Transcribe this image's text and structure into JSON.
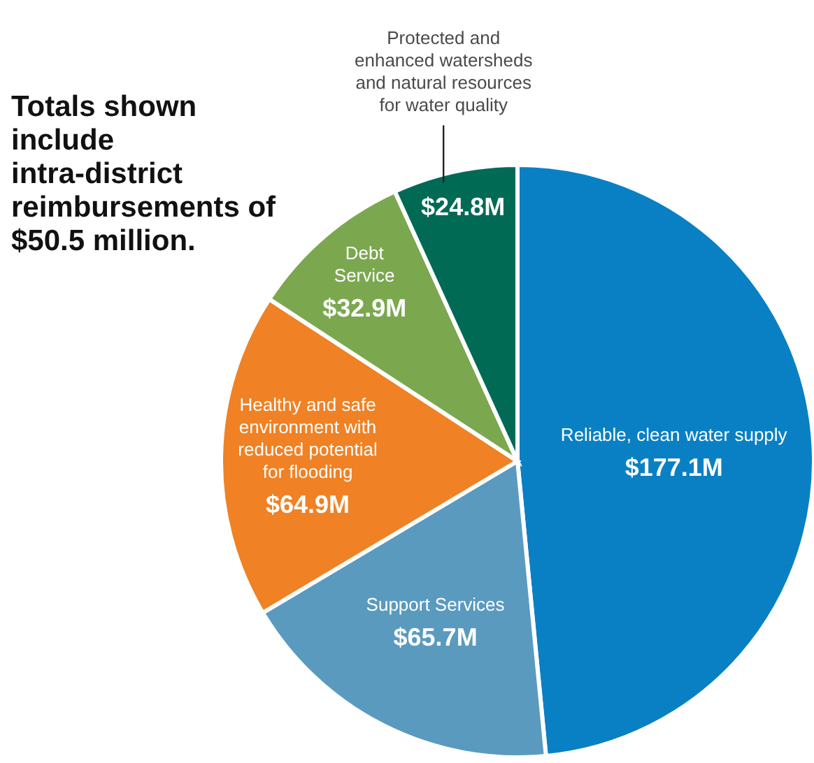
{
  "chart_data": {
    "type": "pie",
    "categories": [
      "Reliable, clean water supply",
      "Support Services",
      "Healthy and safe environment with reduced potential for flooding",
      "Debt Service",
      "Protected and enhanced watersheds and natural resources for water quality"
    ],
    "values": [
      177.1,
      65.7,
      64.9,
      32.9,
      24.8
    ],
    "value_labels": [
      "$177.1M",
      "$65.7M",
      "$64.9M",
      "$32.9M",
      "$24.8M"
    ],
    "colors": [
      "#0a80c4",
      "#5a9abf",
      "#f08124",
      "#7ba84f",
      "#006a55"
    ],
    "annotations": [
      "Totals shown include intra-district reimbursements of $50.5 million."
    ]
  }
}
